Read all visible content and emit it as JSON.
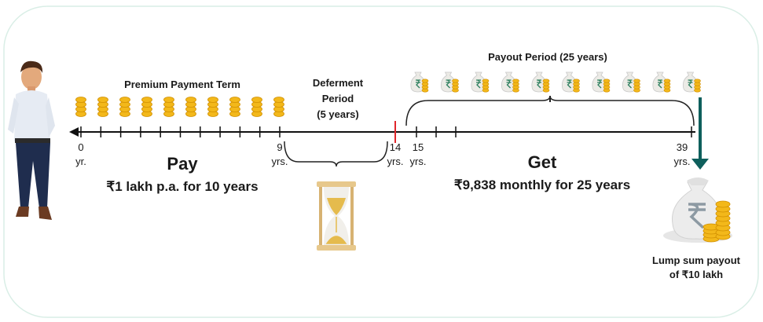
{
  "labels": {
    "premium_term": "Premium Payment Term",
    "deferment": [
      "Deferment",
      "Period",
      "(5 years)"
    ],
    "payout": "Payout Period (25 years)"
  },
  "timeline": [
    {
      "value": "0",
      "unit": "yr."
    },
    {
      "value": "9",
      "unit": "yrs."
    },
    {
      "value": "14",
      "unit": "yrs."
    },
    {
      "value": "15",
      "unit": "yrs."
    },
    {
      "value": "39",
      "unit": "yrs."
    }
  ],
  "pay": {
    "heading": "Pay",
    "detail": "₹1 lakh p.a. for 10 years"
  },
  "get": {
    "heading": "Get",
    "detail": "₹9,838 monthly for 25 years"
  },
  "lump_sum": [
    "Lump sum payout",
    "of ₹10 lakh"
  ]
}
